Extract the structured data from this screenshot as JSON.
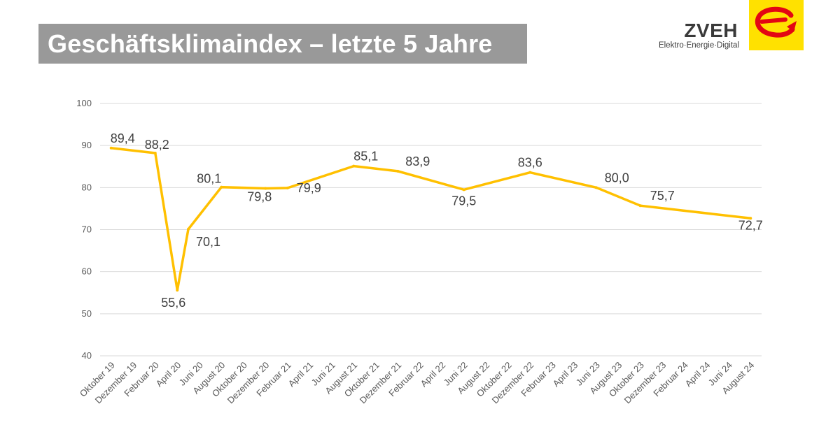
{
  "header": {
    "title": "Geschäftsklimaindex – letzte 5 Jahre"
  },
  "logo": {
    "name": "ZVEH",
    "tagline": "Elektro·Energie·Digital",
    "box_color": "#ffe100",
    "mark_color": "#e30613"
  },
  "chart_data": {
    "type": "line",
    "title": "",
    "xlabel": "",
    "ylabel": "",
    "ylim": [
      40,
      100
    ],
    "yticks": [
      40,
      50,
      60,
      70,
      80,
      90,
      100
    ],
    "grid": true,
    "legend": "none",
    "line_color": "#ffc000",
    "categories": [
      "Oktober 19",
      "Dezember 19",
      "Februar 20",
      "April 20",
      "Juni 20",
      "August 20",
      "Oktober 20",
      "Dezember 20",
      "Februar 21",
      "April 21",
      "Juni 21",
      "August 21",
      "Oktober 21",
      "Dezember 21",
      "Februar 22",
      "April 22",
      "Juni 22",
      "August 22",
      "Oktober 22",
      "Dezember 22",
      "Februar 23",
      "April 23",
      "Juni 23",
      "August 23",
      "Oktober 23",
      "Dezember 23",
      "Februar 24",
      "April 24",
      "Juni 24",
      "August 24"
    ],
    "series": [
      {
        "points": [
          {
            "x": "Oktober 19",
            "y": 89.4,
            "label": "89,4"
          },
          {
            "x": "Februar 20",
            "y": 88.2,
            "label": "88,2"
          },
          {
            "x": "April 20",
            "y": 55.6,
            "label": "55,6"
          },
          {
            "x": "April 20",
            "y": 70.1,
            "label": "70,1"
          },
          {
            "x": "August 20",
            "y": 80.1,
            "label": "80,1"
          },
          {
            "x": "Dezember 20",
            "y": 79.8,
            "label": "79,8"
          },
          {
            "x": "Februar 21",
            "y": 79.9,
            "label": "79,9"
          },
          {
            "x": "August 21",
            "y": 85.1,
            "label": "85,1"
          },
          {
            "x": "Dezember 21",
            "y": 83.9,
            "label": "83,9"
          },
          {
            "x": "Juni 22",
            "y": 79.5,
            "label": "79,5"
          },
          {
            "x": "Dezember 22",
            "y": 83.6,
            "label": "83,6"
          },
          {
            "x": "Juni 23",
            "y": 80.0,
            "label": "80,0"
          },
          {
            "x": "Oktober 23",
            "y": 75.7,
            "label": "75,7"
          },
          {
            "x": "August 24",
            "y": 72.7,
            "label": "72,7"
          }
        ]
      }
    ]
  }
}
